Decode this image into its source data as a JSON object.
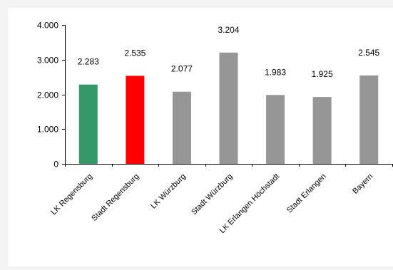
{
  "chart_data": {
    "type": "bar",
    "title": "",
    "xlabel": "",
    "ylabel": "",
    "categories": [
      "LK Regensburg",
      "Stadt Regensburg",
      "LK Würzburg",
      "Stadt Würzburg",
      "LK Erlangen Höchstadt",
      "Stadt Erlangen",
      "Bayern"
    ],
    "values": [
      2283,
      2535,
      2077,
      3204,
      1983,
      1925,
      2545
    ],
    "value_labels": [
      "2.283",
      "2.535",
      "2.077",
      "3.204",
      "1.983",
      "1.925",
      "2.545"
    ],
    "colors": [
      "#339966",
      "#ff0000",
      "#969696",
      "#969696",
      "#969696",
      "#969696",
      "#969696"
    ],
    "ylim": [
      0,
      4000
    ],
    "yticks": [
      0,
      1000,
      2000,
      3000,
      4000
    ],
    "ytick_labels": [
      "0",
      "1.000",
      "2.000",
      "3.000",
      "4.000"
    ],
    "grid": false,
    "legend": "none"
  }
}
